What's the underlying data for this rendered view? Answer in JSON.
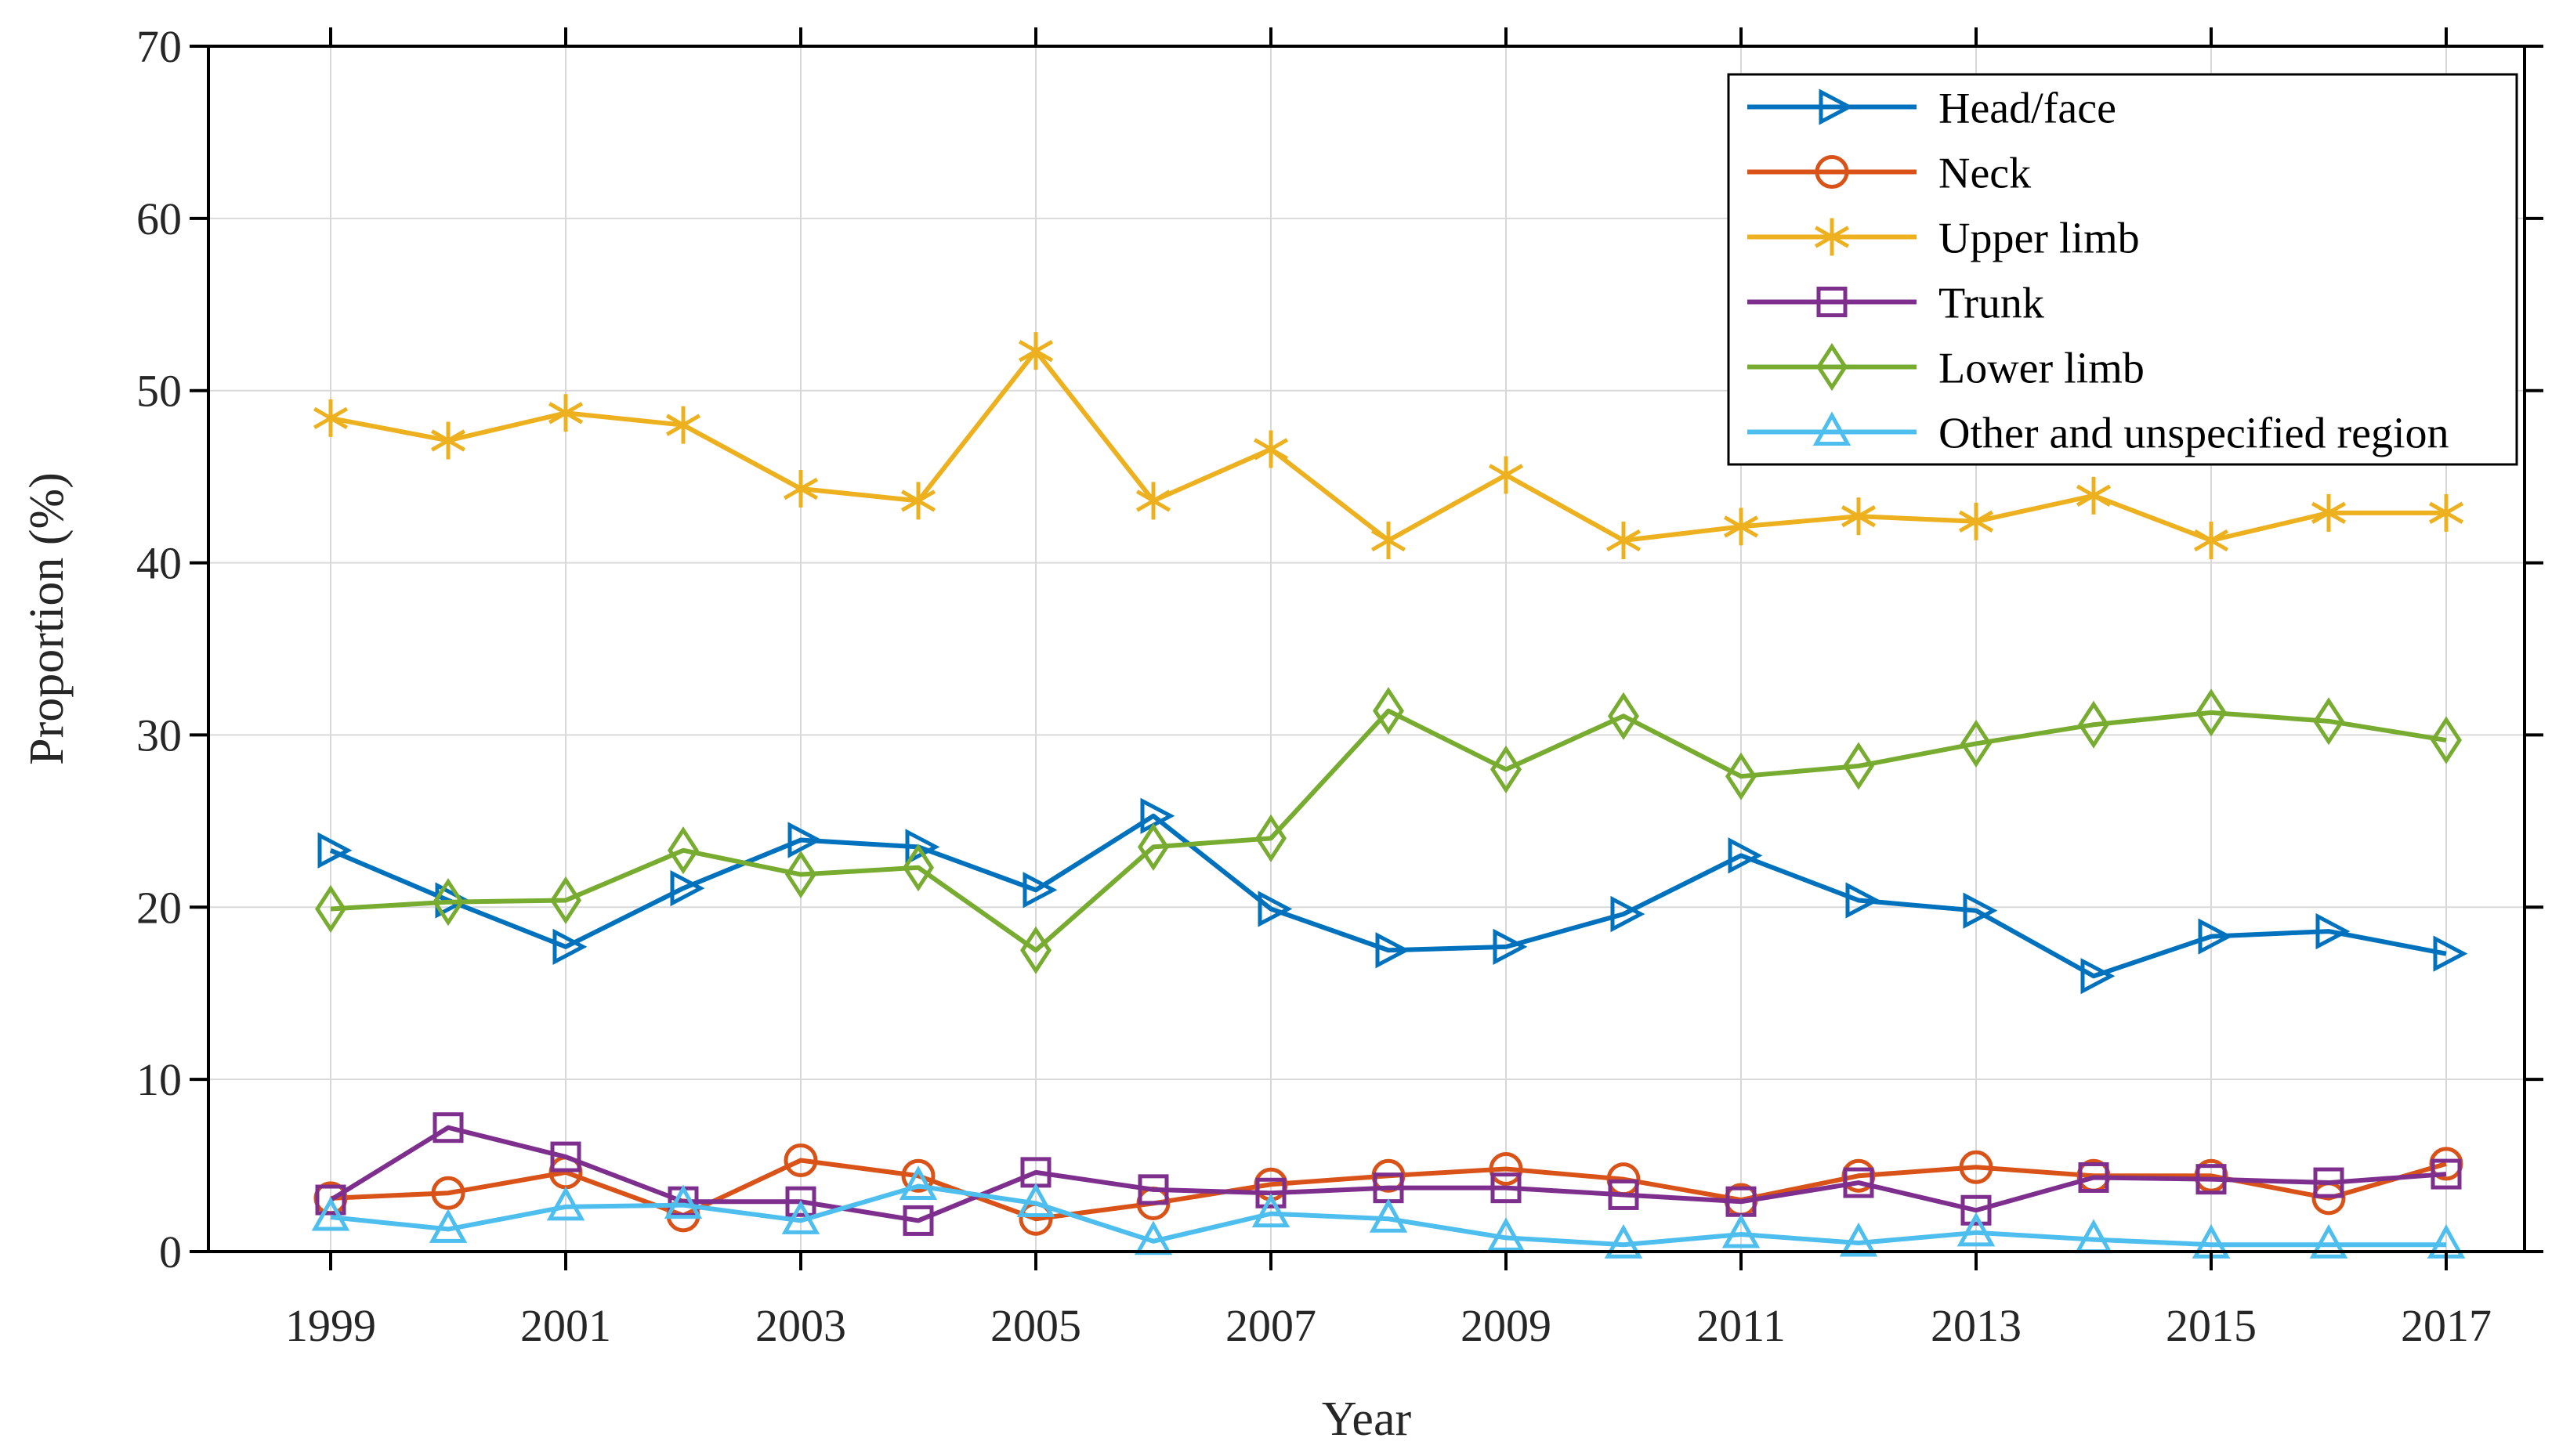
{
  "chart_data": {
    "type": "line",
    "title": "",
    "xlabel": "Year",
    "ylabel": "Proportion (%)",
    "x": [
      1999,
      2000,
      2001,
      2002,
      2003,
      2004,
      2005,
      2006,
      2007,
      2008,
      2009,
      2010,
      2011,
      2012,
      2013,
      2014,
      2015,
      2016,
      2017
    ],
    "xtick_labels": [
      "1999",
      "2001",
      "2003",
      "2005",
      "2007",
      "2009",
      "2011",
      "2013",
      "2015",
      "2017"
    ],
    "xticks": [
      1999,
      2001,
      2003,
      2005,
      2007,
      2009,
      2011,
      2013,
      2015,
      2017
    ],
    "ylim": [
      0,
      70
    ],
    "yticks": [
      0,
      10,
      20,
      30,
      40,
      50,
      60,
      70
    ],
    "ytick_labels": [
      "0",
      "10",
      "20",
      "30",
      "40",
      "50",
      "60",
      "70"
    ],
    "grid": true,
    "legend_position": "top-right",
    "axis_text_color": "#262626",
    "grid_color": "#d9d9d9",
    "frame_color": "#000000",
    "series": [
      {
        "name": "Head/face",
        "color": "#0072BD",
        "marker": "triangle-right",
        "values": [
          23.3,
          20.4,
          17.7,
          21.1,
          23.9,
          23.5,
          21.0,
          25.3,
          19.9,
          17.5,
          17.7,
          19.6,
          23.0,
          20.4,
          19.8,
          16.0,
          18.3,
          18.6,
          17.3
        ]
      },
      {
        "name": "Neck",
        "color": "#D95319",
        "marker": "circle",
        "values": [
          3.1,
          3.4,
          4.6,
          2.1,
          5.3,
          4.4,
          1.9,
          2.8,
          3.9,
          4.4,
          4.8,
          4.2,
          3.0,
          4.4,
          4.9,
          4.4,
          4.4,
          3.1,
          5.1
        ]
      },
      {
        "name": "Upper limb",
        "color": "#EDB120",
        "marker": "asterisk",
        "values": [
          48.4,
          47.1,
          48.7,
          48.0,
          44.3,
          43.6,
          52.3,
          43.6,
          46.6,
          41.3,
          45.1,
          41.3,
          42.1,
          42.7,
          42.4,
          43.9,
          41.3,
          42.9,
          42.9
        ]
      },
      {
        "name": "Trunk",
        "color": "#7E2F8E",
        "marker": "square",
        "values": [
          3.0,
          7.2,
          5.5,
          2.9,
          2.9,
          1.8,
          4.6,
          3.6,
          3.4,
          3.7,
          3.7,
          3.3,
          2.9,
          4.0,
          2.4,
          4.3,
          4.2,
          4.0,
          4.5
        ]
      },
      {
        "name": "Lower limb",
        "color": "#77AC30",
        "marker": "diamond",
        "values": [
          19.9,
          20.3,
          20.4,
          23.3,
          21.9,
          22.3,
          17.5,
          23.5,
          24.0,
          31.4,
          28.0,
          31.1,
          27.6,
          28.2,
          29.5,
          30.6,
          31.3,
          30.8,
          29.7
        ]
      },
      {
        "name": "Other and unspecified region",
        "color": "#4DBEEE",
        "marker": "triangle-up",
        "values": [
          2.0,
          1.3,
          2.6,
          2.7,
          1.8,
          3.8,
          2.8,
          0.6,
          2.2,
          1.9,
          0.8,
          0.4,
          1.0,
          0.5,
          1.1,
          0.7,
          0.4,
          0.4,
          0.4
        ]
      }
    ]
  }
}
